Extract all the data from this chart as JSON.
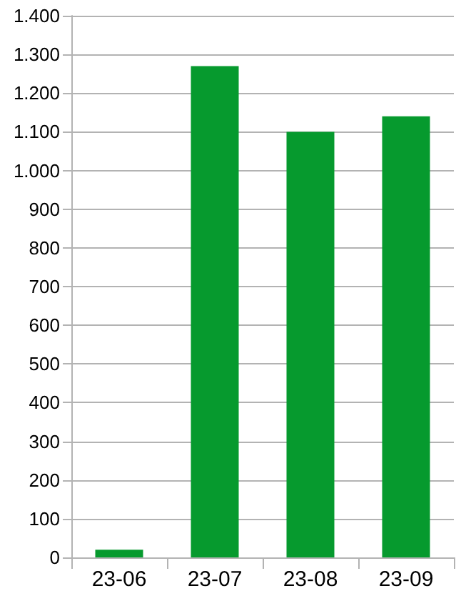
{
  "chart_data": {
    "type": "bar",
    "categories": [
      "23-06",
      "23-07",
      "23-08",
      "23-09"
    ],
    "values": [
      20,
      1270,
      1100,
      1140
    ],
    "color": "#069a2e",
    "ylim": [
      0,
      1400
    ],
    "yticks": [
      0,
      100,
      200,
      300,
      400,
      500,
      600,
      700,
      800,
      900,
      {
        "value": 1000,
        "label": "1.000"
      },
      {
        "value": 1100,
        "label": "1.100"
      },
      {
        "value": 1200,
        "label": "1.200"
      },
      {
        "value": 1300,
        "label": "1.300"
      },
      {
        "value": 1400,
        "label": "1.400"
      }
    ],
    "grid": "y"
  }
}
